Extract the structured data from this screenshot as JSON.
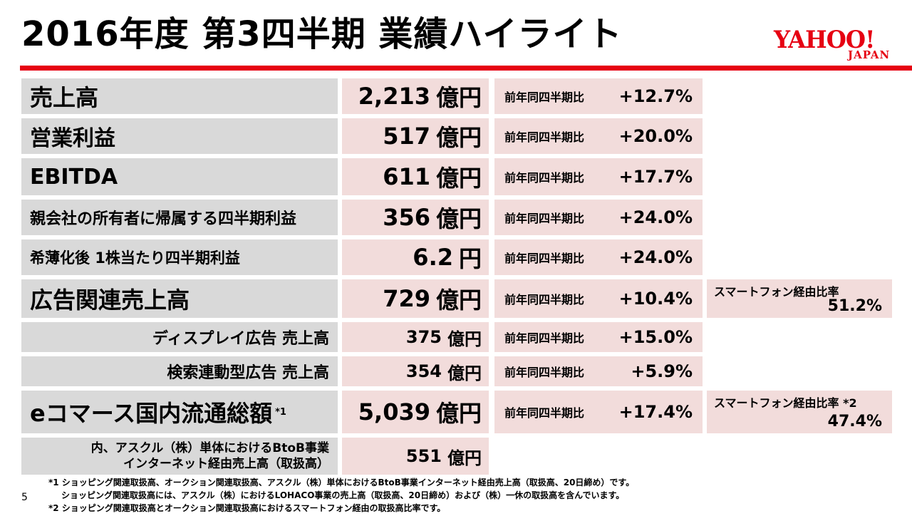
{
  "title": "2016年度 第3四半期 業績ハイライト",
  "logo": {
    "main": "YAHOO!",
    "sub": "JAPAN",
    "color": "#e60012"
  },
  "growth_label": "前年同四半期比",
  "rows": [
    {
      "label": "売上高",
      "value": "2,213",
      "unit": "億円",
      "growth": "+12.7%"
    },
    {
      "label": "営業利益",
      "value": "517",
      "unit": "億円",
      "growth": "+20.0%"
    },
    {
      "label": "EBITDA",
      "value": "611",
      "unit": "億円",
      "growth": "+17.7%"
    },
    {
      "label": "親会社の所有者に帰属する四半期利益",
      "value": "356",
      "unit": "億円",
      "growth": "+24.0%"
    },
    {
      "label": "希薄化後 1株当たり四半期利益",
      "value": "6.2",
      "unit": "円",
      "growth": "+24.0%"
    },
    {
      "label": "広告関連売上高",
      "value": "729",
      "unit": "億円",
      "growth": "+10.4%",
      "extra_label": "スマートフォン経由比率",
      "extra_value": "51.2%"
    },
    {
      "label": "ディスプレイ広告 売上高",
      "value": "375",
      "unit": "億円",
      "growth": "+15.0%"
    },
    {
      "label": "検索連動型広告 売上高",
      "value": "354",
      "unit": "億円",
      "growth": "+5.9%"
    },
    {
      "label": "eコマース国内流通総額",
      "label_note": "*1",
      "value": "5,039",
      "unit": "億円",
      "growth": "+17.4%",
      "extra_label": "スマートフォン経由比率 *2",
      "extra_value": "47.4%"
    },
    {
      "label_line1": "内、アスクル（株）単体におけるBtoB事業",
      "label_line2": "インターネット経由売上高（取扱高）",
      "value": "551",
      "unit": "億円"
    }
  ],
  "page_number": "5",
  "footnotes": [
    "*1 ショッピング関連取扱高、オークション関連取扱高、アスクル（株）単体におけるBtoB事業インターネット経由売上高（取扱高、20日締め）です。",
    "ショッピング関連取扱高には、アスクル（株）におけるLOHACO事業の売上高（取扱高、20日締め）および（株）一休の取扱高を含んでいます。",
    "*2 ショッピング関連取扱高とオークション関連取扱高におけるスマートフォン経由の取扱高比率です。"
  ]
}
